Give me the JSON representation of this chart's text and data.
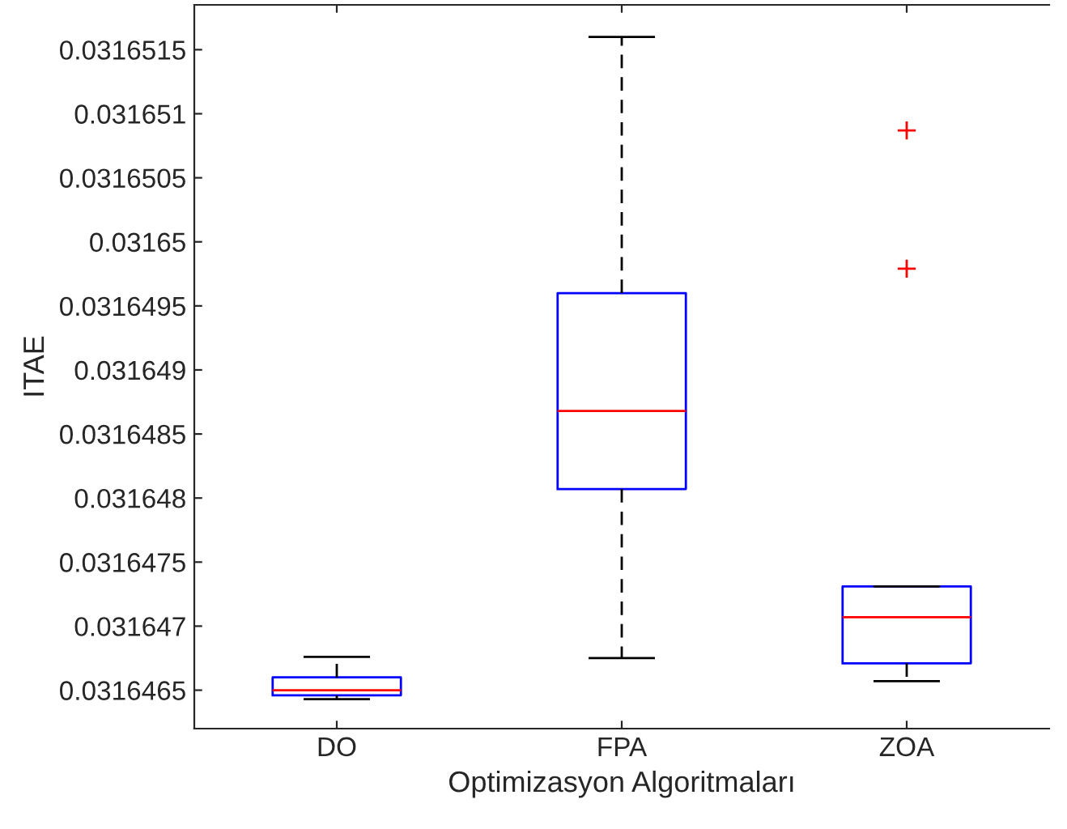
{
  "chart_data": {
    "type": "box",
    "xlabel": "Optimizasyon Algoritmaları",
    "ylabel": "ITAE",
    "categories": [
      "DO",
      "FPA",
      "ZOA"
    ],
    "boxes": [
      {
        "low": 0.03164643,
        "q1": 0.03164646,
        "median": 0.0316465,
        "q3": 0.0316466,
        "high": 0.03164676
      },
      {
        "low": 0.03164675,
        "q1": 0.03164807,
        "median": 0.03164868,
        "q3": 0.0316496,
        "high": 0.0316516
      },
      {
        "low": 0.03164657,
        "q1": 0.03164671,
        "median": 0.03164707,
        "q3": 0.03164731,
        "high": 0.03164731,
        "outliers": [
          0.03165087,
          0.03164979
        ]
      }
    ],
    "ylim": [
      0.0316462,
      0.03165185
    ],
    "yticks": [
      0.0316465,
      0.031647,
      0.0316475,
      0.031648,
      0.0316485,
      0.031649,
      0.0316495,
      0.03165,
      0.0316505,
      0.031651,
      0.0316515
    ],
    "color": "#0000ff",
    "line_style": "dashed",
    "marker": "cross",
    "grid": false
  }
}
